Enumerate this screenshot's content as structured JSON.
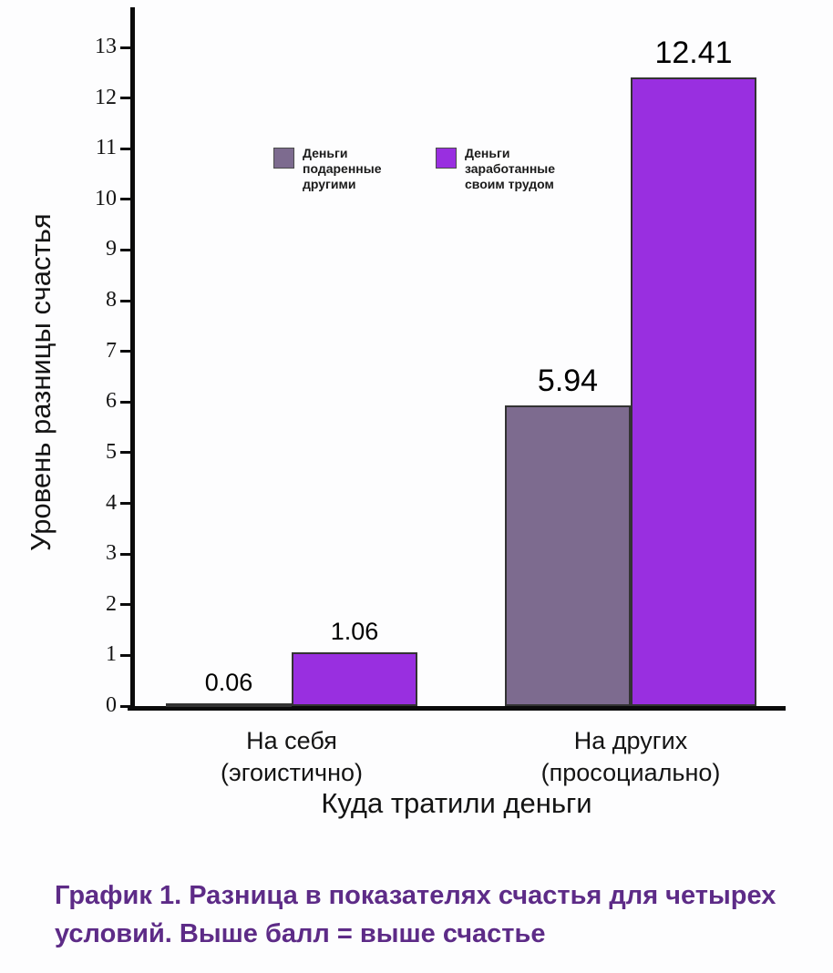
{
  "chart_data": {
    "type": "bar",
    "categories": [
      "На себя\n(эгоистично)",
      "На других\n(просоциально)"
    ],
    "series": [
      {
        "name": "Деньги подаренные другими",
        "color": "#7d6b8f",
        "values": [
          0.06,
          5.94
        ],
        "labels": [
          "0.06",
          "5.94"
        ]
      },
      {
        "name": "Деньги заработанные своим трудом",
        "color": "#992fe0",
        "values": [
          1.06,
          12.41
        ],
        "labels": [
          "1.06",
          "12.41"
        ]
      }
    ],
    "title": "",
    "xlabel": "Куда тратили деньги",
    "ylabel": "Уровень разницы счастья",
    "ylim": [
      0,
      13
    ],
    "yticks": [
      0,
      1,
      2,
      3,
      4,
      5,
      6,
      7,
      8,
      9,
      10,
      11,
      12,
      13
    ],
    "grid": false,
    "legend_position": "top-inside"
  },
  "legend": {
    "items": [
      {
        "label": "Деньги\nподаренные\nдругими",
        "color": "#7d6b8f"
      },
      {
        "label": "Деньги\nзаработанные\nсвоим трудом",
        "color": "#992fe0"
      }
    ]
  },
  "caption": "График 1. Разница в показателях счастья для четырех условий. Выше балл = выше счастье"
}
